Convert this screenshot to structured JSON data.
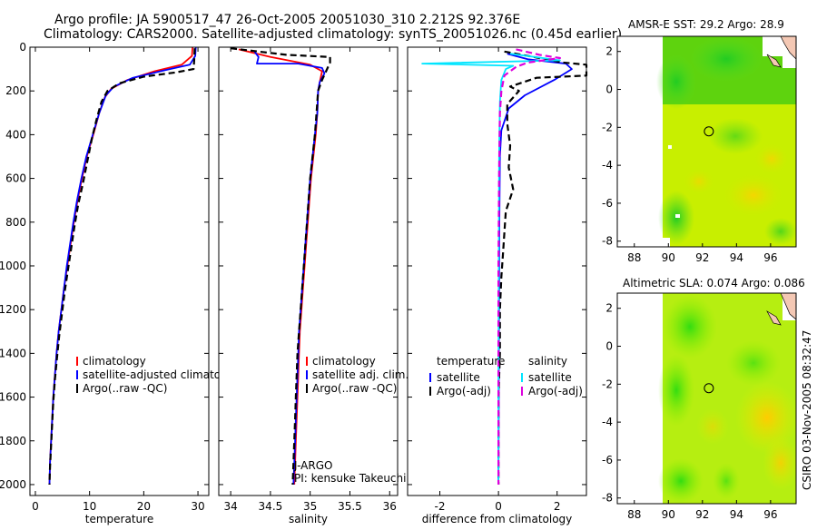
{
  "title_line1": "Argo profile: JA 5900517_47 26-Oct-2005 20051030_310 2.212S 92.376E",
  "title_line2": "Climatology: CARS2000. Satellite-adjusted climatology: synTS_20051026.nc (0.45d earlier)",
  "side_label": "CSIRO 03-Nov-2005 08:32:47",
  "colors": {
    "clim": "#ff0000",
    "sat": "#0000ff",
    "argo": "#000000",
    "sal_sat": "#00e5ff",
    "sal_argo": "#dd00dd"
  },
  "chart_data": [
    {
      "type": "line",
      "xlabel": "temperature",
      "xlim": [
        -1,
        32
      ],
      "ylim": [
        0,
        2050
      ],
      "xticks": [
        0,
        10,
        20,
        30
      ],
      "yticks": [
        0,
        200,
        400,
        600,
        800,
        1000,
        1200,
        1400,
        1600,
        1800,
        2000
      ],
      "legend": [
        "climatology",
        "satellite-adjusted climatology",
        "Argo(..raw -QC)"
      ],
      "series": [
        {
          "key": "clim",
          "style": "solid",
          "color": "#ff0000",
          "points": [
            [
              29,
              0
            ],
            [
              28.9,
              40
            ],
            [
              27,
              80
            ],
            [
              22,
              110
            ],
            [
              17,
              150
            ],
            [
              14,
              190
            ],
            [
              12.8,
              230
            ],
            [
              11.8,
              300
            ],
            [
              10.7,
              400
            ],
            [
              9.5,
              500
            ],
            [
              8.6,
              600
            ],
            [
              7.8,
              700
            ],
            [
              7.1,
              800
            ],
            [
              6.5,
              900
            ],
            [
              5.9,
              1000
            ],
            [
              5.3,
              1100
            ],
            [
              4.8,
              1200
            ],
            [
              4.3,
              1300
            ],
            [
              3.9,
              1400
            ],
            [
              3.6,
              1500
            ],
            [
              3.3,
              1600
            ],
            [
              3.1,
              1700
            ],
            [
              2.9,
              1800
            ],
            [
              2.7,
              1900
            ],
            [
              2.6,
              2000
            ]
          ]
        },
        {
          "key": "sat",
          "style": "solid",
          "color": "#0000ff",
          "points": [
            [
              29.6,
              0
            ],
            [
              29.5,
              40
            ],
            [
              28.5,
              80
            ],
            [
              24,
              105
            ],
            [
              18,
              140
            ],
            [
              14.5,
              180
            ],
            [
              13,
              220
            ],
            [
              11.8,
              300
            ],
            [
              10.6,
              400
            ],
            [
              9.4,
              500
            ],
            [
              8.5,
              600
            ],
            [
              7.7,
              700
            ],
            [
              7.0,
              800
            ],
            [
              6.4,
              900
            ],
            [
              5.8,
              1000
            ],
            [
              5.3,
              1100
            ],
            [
              4.8,
              1200
            ],
            [
              4.3,
              1300
            ],
            [
              3.9,
              1400
            ],
            [
              3.6,
              1500
            ],
            [
              3.3,
              1600
            ],
            [
              3.1,
              1700
            ],
            [
              2.9,
              1800
            ],
            [
              2.7,
              1900
            ],
            [
              2.6,
              2000
            ]
          ]
        },
        {
          "key": "argo",
          "style": "dashed",
          "color": "#000000",
          "points": [
            [
              29.4,
              5
            ],
            [
              29.3,
              60
            ],
            [
              29.2,
              100
            ],
            [
              26,
              115
            ],
            [
              20,
              135
            ],
            [
              15.5,
              165
            ],
            [
              13.3,
              200
            ],
            [
              12.2,
              250
            ],
            [
              11.3,
              330
            ],
            [
              10.4,
              420
            ],
            [
              9.6,
              520
            ],
            [
              8.8,
              620
            ],
            [
              7.9,
              720
            ],
            [
              7.2,
              820
            ],
            [
              6.6,
              920
            ],
            [
              6.0,
              1020
            ],
            [
              5.4,
              1120
            ],
            [
              4.9,
              1220
            ],
            [
              4.4,
              1320
            ],
            [
              4.0,
              1420
            ],
            [
              3.6,
              1520
            ],
            [
              3.3,
              1620
            ],
            [
              3.1,
              1720
            ],
            [
              2.9,
              1820
            ],
            [
              2.7,
              1920
            ],
            [
              2.6,
              2000
            ]
          ]
        }
      ]
    },
    {
      "type": "line",
      "xlabel": "salinity",
      "xlim": [
        33.85,
        36.1
      ],
      "ylim": [
        0,
        2050
      ],
      "xticks": [
        34,
        34.5,
        35,
        35.5,
        36
      ],
      "legend": [
        "climatology",
        "satellite adj. clim.",
        "Argo(..raw -QC)"
      ],
      "notes": [
        "J-ARGO",
        "PI: kensuke Takeuchi"
      ],
      "series": [
        {
          "key": "clim",
          "style": "solid",
          "color": "#ff0000",
          "points": [
            [
              34.1,
              10
            ],
            [
              34.5,
              45
            ],
            [
              35.0,
              80
            ],
            [
              35.15,
              110
            ],
            [
              35.12,
              160
            ],
            [
              35.1,
              200
            ],
            [
              35.09,
              300
            ],
            [
              35.07,
              400
            ],
            [
              35.04,
              500
            ],
            [
              35.01,
              600
            ],
            [
              34.99,
              700
            ],
            [
              34.97,
              800
            ],
            [
              34.95,
              900
            ],
            [
              34.93,
              1000
            ],
            [
              34.91,
              1100
            ],
            [
              34.89,
              1200
            ],
            [
              34.87,
              1300
            ],
            [
              34.86,
              1400
            ],
            [
              34.85,
              1500
            ],
            [
              34.84,
              1600
            ],
            [
              34.83,
              1700
            ],
            [
              34.82,
              1800
            ],
            [
              34.81,
              1900
            ],
            [
              34.8,
              2000
            ]
          ]
        },
        {
          "key": "sat",
          "style": "solid",
          "color": "#0000ff",
          "points": [
            [
              34.3,
              20
            ],
            [
              34.35,
              45
            ],
            [
              34.33,
              75
            ],
            [
              34.85,
              75
            ],
            [
              35.15,
              95
            ],
            [
              35.18,
              120
            ],
            [
              35.12,
              160
            ],
            [
              35.1,
              200
            ],
            [
              35.09,
              300
            ],
            [
              35.06,
              400
            ],
            [
              35.03,
              500
            ],
            [
              35.0,
              600
            ],
            [
              34.98,
              700
            ],
            [
              34.96,
              800
            ],
            [
              34.94,
              900
            ],
            [
              34.92,
              1000
            ],
            [
              34.9,
              1100
            ],
            [
              34.88,
              1200
            ],
            [
              34.86,
              1300
            ],
            [
              34.85,
              1400
            ],
            [
              34.84,
              1500
            ],
            [
              34.83,
              1600
            ],
            [
              34.82,
              1700
            ],
            [
              34.81,
              1800
            ],
            [
              34.8,
              1900
            ],
            [
              34.79,
              2000
            ]
          ]
        },
        {
          "key": "argo",
          "style": "dashed",
          "color": "#000000",
          "points": [
            [
              34.0,
              5
            ],
            [
              34.7,
              35
            ],
            [
              35.25,
              45
            ],
            [
              35.25,
              70
            ],
            [
              35.2,
              110
            ],
            [
              35.15,
              150
            ],
            [
              35.1,
              200
            ],
            [
              35.08,
              300
            ],
            [
              35.06,
              400
            ],
            [
              35.03,
              500
            ],
            [
              35.0,
              600
            ],
            [
              34.98,
              700
            ],
            [
              34.96,
              800
            ],
            [
              34.94,
              900
            ],
            [
              34.92,
              1000
            ],
            [
              34.9,
              1100
            ],
            [
              34.88,
              1200
            ],
            [
              34.86,
              1300
            ],
            [
              34.84,
              1400
            ],
            [
              34.83,
              1500
            ],
            [
              34.82,
              1600
            ],
            [
              34.81,
              1700
            ],
            [
              34.8,
              1800
            ],
            [
              34.79,
              1900
            ],
            [
              34.78,
              2000
            ]
          ]
        }
      ]
    },
    {
      "type": "line",
      "xlabel": "difference from climatology",
      "xlim": [
        -3.1,
        3.0
      ],
      "ylim": [
        0,
        2050
      ],
      "xticks": [
        -2,
        0,
        2
      ],
      "legend_headers": [
        "temperature",
        "salinity"
      ],
      "legend": [
        "satellite",
        "Argo(-adj)",
        "satellite",
        "Argo(-adj)"
      ],
      "series": [
        {
          "key": "t_sat",
          "style": "solid",
          "color": "#0000ff",
          "points": [
            [
              0.3,
              30
            ],
            [
              1.0,
              55
            ],
            [
              2.3,
              75
            ],
            [
              2.5,
              100
            ],
            [
              1.9,
              150
            ],
            [
              0.9,
              220
            ],
            [
              0.35,
              280
            ],
            [
              0.1,
              380
            ],
            [
              0.05,
              500
            ],
            [
              0.03,
              800
            ],
            [
              0.02,
              1200
            ],
            [
              0,
              2000
            ]
          ]
        },
        {
          "key": "t_argo",
          "style": "dashed",
          "color": "#000000",
          "points": [
            [
              0.2,
              20
            ],
            [
              1.4,
              50
            ],
            [
              2.2,
              70
            ],
            [
              3.0,
              80
            ],
            [
              3.0,
              130
            ],
            [
              1.3,
              140
            ],
            [
              0.4,
              180
            ],
            [
              0.7,
              200
            ],
            [
              0.3,
              260
            ],
            [
              0.3,
              350
            ],
            [
              0.4,
              450
            ],
            [
              0.35,
              550
            ],
            [
              0.5,
              650
            ],
            [
              0.25,
              750
            ],
            [
              0.2,
              850
            ],
            [
              0.15,
              950
            ],
            [
              0.1,
              1050
            ],
            [
              0.05,
              1200
            ],
            [
              0.05,
              1400
            ],
            [
              0,
              1600
            ],
            [
              0,
              2000
            ]
          ]
        },
        {
          "key": "s_sat",
          "style": "solid",
          "color": "#00e5ff",
          "points": [
            [
              0.4,
              30
            ],
            [
              2.1,
              60
            ],
            [
              -2.6,
              75
            ],
            [
              0.5,
              85
            ],
            [
              0.25,
              100
            ],
            [
              0.1,
              150
            ],
            [
              0.05,
              250
            ],
            [
              0.02,
              500
            ],
            [
              0.01,
              1000
            ],
            [
              0,
              1500
            ],
            [
              0,
              2000
            ]
          ]
        },
        {
          "key": "s_argo",
          "style": "dashed",
          "color": "#dd00dd",
          "points": [
            [
              0.6,
              10
            ],
            [
              1.4,
              35
            ],
            [
              2.1,
              50
            ],
            [
              1.0,
              70
            ],
            [
              0.6,
              90
            ],
            [
              0.2,
              130
            ],
            [
              0.1,
              200
            ],
            [
              0.05,
              300
            ],
            [
              0.02,
              600
            ],
            [
              0,
              1000
            ],
            [
              0,
              2000
            ]
          ]
        }
      ]
    },
    {
      "type": "heatmap",
      "title": "AMSR-E SST: 29.2 Argo: 28.9",
      "xlim": [
        87,
        97.5
      ],
      "ylim": [
        -8.3,
        2.8
      ],
      "xticks": [
        88,
        90,
        92,
        94,
        96
      ],
      "yticks": [
        -8,
        -6,
        -4,
        -2,
        0,
        2
      ],
      "marker": [
        92.376,
        -2.212
      ]
    },
    {
      "type": "heatmap",
      "title": "Altimetric SLA: 0.074 Argo: 0.086",
      "xlim": [
        87,
        97.5
      ],
      "ylim": [
        -8.3,
        2.8
      ],
      "xticks": [
        88,
        90,
        92,
        94,
        96
      ],
      "yticks": [
        -8,
        -6,
        -4,
        -2,
        0,
        2
      ],
      "marker": [
        92.376,
        -2.212
      ]
    }
  ]
}
